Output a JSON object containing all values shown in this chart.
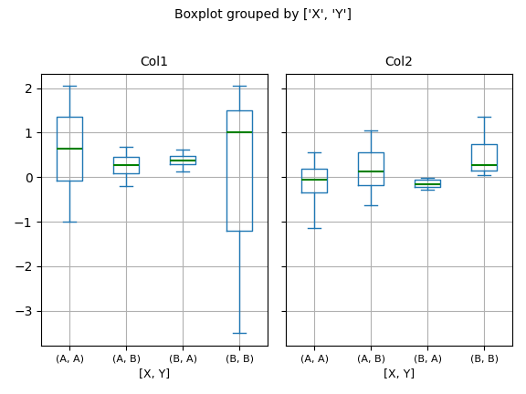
{
  "title": "Boxplot grouped by ['X', 'Y']",
  "col1_title": "Col1",
  "col2_title": "Col2",
  "xlabel": "[X, Y]",
  "xtick_labels": [
    "(A, A)",
    "(A, B)",
    "(B, A)",
    "(B, B)"
  ],
  "figsize": [
    5.76,
    4.32
  ],
  "dpi": 100,
  "box_color": "#1f77b4",
  "median_color": "green",
  "grid_color": "#b0b0b0",
  "col1_stats": [
    {
      "med": 0.65,
      "q1": -0.07,
      "q3": 1.35,
      "whislo": -1.0,
      "whishi": 2.05
    },
    {
      "med": 0.27,
      "q1": 0.08,
      "q3": 0.45,
      "whislo": -0.2,
      "whishi": 0.68
    },
    {
      "med": 0.38,
      "q1": 0.29,
      "q3": 0.47,
      "whislo": 0.12,
      "whishi": 0.62
    },
    {
      "med": 1.0,
      "q1": -1.2,
      "q3": 1.5,
      "whislo": -3.5,
      "whishi": 2.05
    }
  ],
  "col2_stats": [
    {
      "med": -0.05,
      "q1": -0.35,
      "q3": 0.18,
      "whislo": -1.15,
      "whishi": 0.55
    },
    {
      "med": 0.12,
      "q1": -0.18,
      "q3": 0.55,
      "whislo": -0.62,
      "whishi": 1.05
    },
    {
      "med": -0.15,
      "q1": -0.22,
      "q3": -0.06,
      "whislo": -0.28,
      "whishi": -0.01
    },
    {
      "med": 0.27,
      "q1": 0.15,
      "q3": 0.75,
      "whislo": 0.05,
      "whishi": 1.35
    }
  ]
}
